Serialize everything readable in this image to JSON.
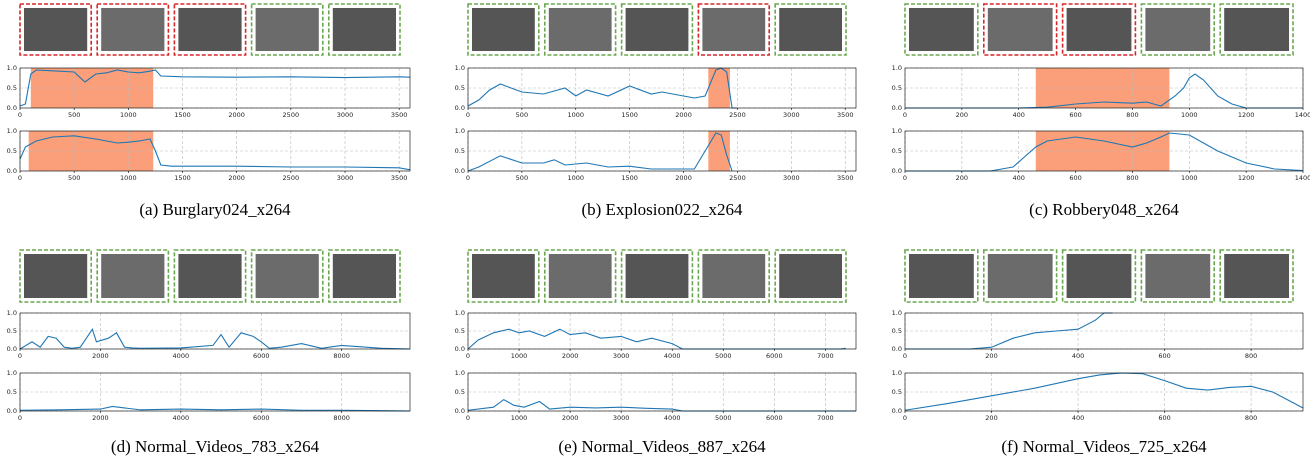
{
  "chart_data": [
    {
      "type": "line",
      "color": "#1f77b4",
      "shade_color": "#fa9f79",
      "shade": [
        100,
        1230
      ],
      "grid": true,
      "x": [
        0,
        50,
        100,
        150,
        300,
        500,
        600,
        700,
        800,
        900,
        1000,
        1100,
        1200,
        1250,
        1300,
        1500,
        2000,
        2500,
        3000,
        3500,
        3600
      ],
      "values": [
        0.05,
        0.1,
        0.85,
        0.95,
        0.93,
        0.9,
        0.65,
        0.85,
        0.88,
        0.95,
        0.9,
        0.88,
        0.92,
        0.95,
        0.8,
        0.78,
        0.77,
        0.78,
        0.76,
        0.78,
        0.77
      ],
      "xlim": [
        0,
        3600
      ],
      "xticks": [
        0,
        500,
        1000,
        1500,
        2000,
        2500,
        3000,
        3500
      ],
      "ylim": [
        0,
        1
      ],
      "yticks": [
        {
          "value": 0,
          "label": "0.0"
        },
        {
          "value": 0.5,
          "label": "0.5"
        },
        {
          "value": 1,
          "label": "1.0"
        }
      ]
    },
    {
      "type": "line",
      "color": "#1f77b4",
      "shade_color": "#fa9f79",
      "shade": [
        80,
        1230
      ],
      "grid": true,
      "x": [
        0,
        50,
        150,
        300,
        500,
        700,
        900,
        1000,
        1100,
        1200,
        1250,
        1300,
        1400,
        2000,
        2500,
        3000,
        3500,
        3600
      ],
      "values": [
        0.3,
        0.6,
        0.75,
        0.85,
        0.88,
        0.8,
        0.7,
        0.72,
        0.75,
        0.8,
        0.5,
        0.15,
        0.12,
        0.12,
        0.1,
        0.1,
        0.08,
        0.03
      ],
      "xlim": [
        0,
        3600
      ],
      "xticks": [
        0,
        500,
        1000,
        1500,
        2000,
        2500,
        3000,
        3500
      ],
      "ylim": [
        0,
        1
      ],
      "yticks": [
        {
          "value": 0,
          "label": "0.0"
        },
        {
          "value": 0.5,
          "label": "0.5"
        },
        {
          "value": 1,
          "label": "1.0"
        }
      ]
    },
    {
      "type": "line",
      "color": "#1f77b4",
      "shade_color": "#fa9f79",
      "shade": [
        2230,
        2430
      ],
      "grid": true,
      "x": [
        0,
        100,
        200,
        300,
        400,
        500,
        700,
        900,
        1000,
        1100,
        1300,
        1500,
        1700,
        1800,
        2000,
        2100,
        2200,
        2300,
        2350,
        2400,
        2450,
        2500
      ],
      "values": [
        0.05,
        0.2,
        0.45,
        0.6,
        0.5,
        0.4,
        0.35,
        0.5,
        0.3,
        0.45,
        0.3,
        0.55,
        0.35,
        0.4,
        0.3,
        0.25,
        0.3,
        0.95,
        1,
        0.9,
        0,
        0
      ],
      "xlim": [
        0,
        3600
      ],
      "xticks": [
        0,
        500,
        1000,
        1500,
        2000,
        2500,
        3000,
        3500
      ],
      "ylim": [
        0,
        1
      ],
      "yticks": [
        {
          "value": 0,
          "label": "0.0"
        },
        {
          "value": 0.5,
          "label": "0.5"
        },
        {
          "value": 1,
          "label": "1.0"
        }
      ]
    },
    {
      "type": "line",
      "color": "#1f77b4",
      "shade_color": "#fa9f79",
      "shade": [
        2230,
        2430
      ],
      "grid": true,
      "x": [
        0,
        100,
        300,
        500,
        700,
        800,
        900,
        1100,
        1300,
        1500,
        1700,
        1900,
        2100,
        2200,
        2300,
        2350,
        2400,
        2450
      ],
      "values": [
        0,
        0.1,
        0.38,
        0.2,
        0.2,
        0.28,
        0.15,
        0.2,
        0.1,
        0.12,
        0.05,
        0.05,
        0.05,
        0.5,
        0.95,
        0.9,
        0.4,
        0
      ],
      "xlim": [
        0,
        3600
      ],
      "xticks": [
        0,
        500,
        1000,
        1500,
        2000,
        2500,
        3000,
        3500
      ],
      "ylim": [
        0,
        1
      ],
      "yticks": [
        {
          "value": 0,
          "label": "0.0"
        },
        {
          "value": 0.5,
          "label": "0.5"
        },
        {
          "value": 1,
          "label": "1.0"
        }
      ]
    },
    {
      "type": "line",
      "color": "#1f77b4",
      "shade_color": "#fa9f79",
      "shade": [
        460,
        930
      ],
      "grid": true,
      "x": [
        0,
        400,
        500,
        600,
        700,
        800,
        850,
        900,
        950,
        980,
        1000,
        1020,
        1050,
        1100,
        1150,
        1200,
        1400
      ],
      "values": [
        0,
        0,
        0.02,
        0.1,
        0.15,
        0.12,
        0.15,
        0.05,
        0.3,
        0.5,
        0.75,
        0.85,
        0.7,
        0.3,
        0.1,
        0,
        0
      ],
      "xlim": [
        0,
        1400
      ],
      "xticks": [
        0,
        200,
        400,
        600,
        800,
        1000,
        1200,
        1400
      ],
      "ylim": [
        0,
        1
      ],
      "yticks": [
        {
          "value": 0,
          "label": "0.0"
        },
        {
          "value": 0.5,
          "label": "0.5"
        },
        {
          "value": 1,
          "label": "1.0"
        }
      ]
    },
    {
      "type": "line",
      "color": "#1f77b4",
      "shade_color": "#fa9f79",
      "shade": [
        460,
        930
      ],
      "grid": true,
      "x": [
        0,
        300,
        380,
        420,
        460,
        500,
        600,
        700,
        800,
        850,
        900,
        930,
        1000,
        1050,
        1100,
        1200,
        1300,
        1400
      ],
      "values": [
        0,
        0,
        0.1,
        0.35,
        0.6,
        0.75,
        0.85,
        0.75,
        0.6,
        0.7,
        0.85,
        0.95,
        0.9,
        0.7,
        0.5,
        0.2,
        0.05,
        0.01
      ],
      "xlim": [
        0,
        1400
      ],
      "xticks": [
        0,
        200,
        400,
        600,
        800,
        1000,
        1200,
        1400
      ],
      "ylim": [
        0,
        1
      ],
      "yticks": [
        {
          "value": 0,
          "label": "0.0"
        },
        {
          "value": 0.5,
          "label": "0.5"
        },
        {
          "value": 1,
          "label": "1.0"
        }
      ]
    },
    {
      "type": "line",
      "color": "#1f77b4",
      "grid": true,
      "x": [
        0,
        300,
        500,
        700,
        900,
        1100,
        1300,
        1500,
        1800,
        1900,
        2200,
        2400,
        2600,
        2800,
        3000,
        4000,
        4800,
        5000,
        5200,
        5500,
        5800,
        6000,
        6200,
        6500,
        7000,
        7500,
        8000,
        9000,
        9700
      ],
      "values": [
        0,
        0.2,
        0.05,
        0.35,
        0.3,
        0.05,
        0.02,
        0.05,
        0.55,
        0.2,
        0.3,
        0.45,
        0.05,
        0.03,
        0.02,
        0.03,
        0.1,
        0.4,
        0.05,
        0.45,
        0.35,
        0.2,
        0.02,
        0.05,
        0.15,
        0.02,
        0.1,
        0.02,
        0
      ],
      "xlim": [
        0,
        9700
      ],
      "xticks": [
        0,
        2000,
        4000,
        6000,
        8000
      ],
      "ylim": [
        0,
        1
      ],
      "yticks": [
        {
          "value": 0,
          "label": "0.0"
        },
        {
          "value": 0.5,
          "label": "0.5"
        },
        {
          "value": 1,
          "label": "1.0"
        }
      ]
    },
    {
      "type": "line",
      "color": "#1f77b4",
      "grid": true,
      "x": [
        0,
        1000,
        2000,
        2300,
        2600,
        3000,
        4000,
        5000,
        6000,
        7000,
        8000,
        9700
      ],
      "values": [
        0.02,
        0.03,
        0.05,
        0.12,
        0.08,
        0.03,
        0.05,
        0.03,
        0.05,
        0.02,
        0.02,
        0
      ],
      "xlim": [
        0,
        9700
      ],
      "xticks": [
        0,
        2000,
        4000,
        6000,
        8000
      ],
      "ylim": [
        0,
        1
      ],
      "yticks": [
        {
          "value": 0,
          "label": "0.0"
        },
        {
          "value": 0.5,
          "label": "0.5"
        },
        {
          "value": 1,
          "label": "1.0"
        }
      ]
    },
    {
      "type": "line",
      "color": "#1f77b4",
      "grid": true,
      "x": [
        0,
        200,
        500,
        800,
        1000,
        1200,
        1500,
        1800,
        2000,
        2300,
        2600,
        3000,
        3300,
        3600,
        4000,
        4200,
        4300,
        7300,
        7400
      ],
      "values": [
        0,
        0.25,
        0.45,
        0.55,
        0.45,
        0.5,
        0.35,
        0.55,
        0.4,
        0.45,
        0.3,
        0.35,
        0.2,
        0.3,
        0.15,
        0,
        0,
        0,
        0.02
      ],
      "xlim": [
        0,
        7600
      ],
      "xticks": [
        0,
        1000,
        2000,
        3000,
        4000,
        5000,
        6000,
        7000
      ],
      "ylim": [
        0,
        1
      ],
      "yticks": [
        {
          "value": 0,
          "label": "0.0"
        },
        {
          "value": 0.5,
          "label": "0.5"
        },
        {
          "value": 1,
          "label": "1.0"
        }
      ]
    },
    {
      "type": "line",
      "color": "#1f77b4",
      "grid": true,
      "x": [
        0,
        500,
        700,
        900,
        1100,
        1400,
        1600,
        2000,
        2500,
        3000,
        3500,
        4000,
        4200,
        7600
      ],
      "values": [
        0.02,
        0.1,
        0.3,
        0.15,
        0.1,
        0.25,
        0.05,
        0.1,
        0.08,
        0.1,
        0.07,
        0.05,
        0,
        0
      ],
      "xlim": [
        0,
        7600
      ],
      "xticks": [
        0,
        1000,
        2000,
        3000,
        4000,
        5000,
        6000,
        7000
      ],
      "ylim": [
        0,
        1
      ],
      "yticks": [
        {
          "value": 0,
          "label": "0.0"
        },
        {
          "value": 0.5,
          "label": "0.5"
        },
        {
          "value": 1,
          "label": "1.0"
        }
      ]
    },
    {
      "type": "line",
      "color": "#1f77b4",
      "grid": true,
      "x": [
        0,
        150,
        200,
        250,
        300,
        350,
        400,
        440,
        460,
        480
      ],
      "values": [
        0,
        0,
        0.05,
        0.3,
        0.45,
        0.5,
        0.55,
        0.8,
        1,
        1
      ],
      "xlim": [
        0,
        920
      ],
      "xticks": [
        0,
        200,
        400,
        600,
        800
      ],
      "ylim": [
        0,
        1
      ],
      "yticks": [
        {
          "value": 0,
          "label": "0.0"
        },
        {
          "value": 0.5,
          "label": "0.5"
        },
        {
          "value": 1,
          "label": "1.0"
        }
      ]
    },
    {
      "type": "line",
      "color": "#1f77b4",
      "grid": true,
      "x": [
        0,
        100,
        200,
        300,
        400,
        450,
        500,
        550,
        600,
        650,
        700,
        750,
        800,
        850,
        900,
        920
      ],
      "values": [
        0.02,
        0.2,
        0.4,
        0.6,
        0.85,
        0.95,
        1,
        0.98,
        0.8,
        0.6,
        0.55,
        0.62,
        0.65,
        0.5,
        0.2,
        0.08
      ],
      "xlim": [
        0,
        920
      ],
      "xticks": [
        0,
        200,
        400,
        600,
        800
      ],
      "ylim": [
        0,
        1
      ],
      "yticks": [
        {
          "value": 0,
          "label": "0.0"
        },
        {
          "value": 0.5,
          "label": "0.5"
        },
        {
          "value": 1,
          "label": "1.0"
        }
      ]
    }
  ],
  "panels": [
    {
      "caption": "(a) Burglary024_x264",
      "frame_colors": [
        "#d62728",
        "#d62728",
        "#d62728",
        "#6aa84f",
        "#6aa84f"
      ]
    },
    {
      "caption": "(b) Explosion022_x264",
      "frame_colors": [
        "#6aa84f",
        "#6aa84f",
        "#6aa84f",
        "#d62728",
        "#6aa84f"
      ]
    },
    {
      "caption": "(c) Robbery048_x264",
      "frame_colors": [
        "#6aa84f",
        "#d62728",
        "#d62728",
        "#6aa84f",
        "#6aa84f"
      ]
    },
    {
      "caption": "(d) Normal_Videos_783_x264",
      "frame_colors": [
        "#6aa84f",
        "#6aa84f",
        "#6aa84f",
        "#6aa84f",
        "#6aa84f"
      ]
    },
    {
      "caption": "(e) Normal_Videos_887_x264",
      "frame_colors": [
        "#6aa84f",
        "#6aa84f",
        "#6aa84f",
        "#6aa84f",
        "#6aa84f"
      ]
    },
    {
      "caption": "(f) Normal_Videos_725_x264",
      "frame_colors": [
        "#6aa84f",
        "#6aa84f",
        "#6aa84f",
        "#6aa84f",
        "#6aa84f"
      ]
    }
  ]
}
